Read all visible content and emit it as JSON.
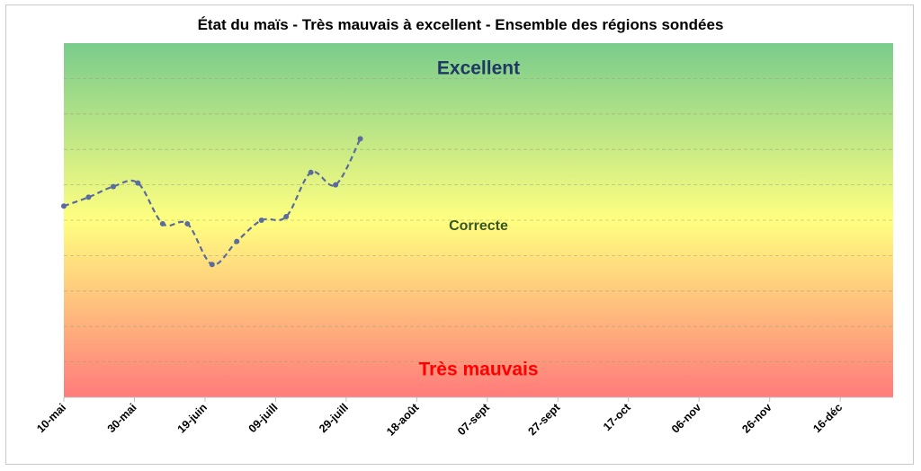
{
  "chart_data": {
    "type": "line",
    "title": "État du maïs - Très mauvais à excellent - Ensemble des régions sondées",
    "xlabel": "",
    "ylabel": "",
    "x_tick_labels": [
      "10-mai",
      "30-mai",
      "19-juin",
      "09-juill",
      "29-juill",
      "18-août",
      "07-sept",
      "27-sept",
      "17-oct",
      "06-nov",
      "26-nov",
      "16-déc"
    ],
    "x_tick_days": [
      0,
      20,
      40,
      60,
      80,
      100,
      120,
      140,
      160,
      180,
      200,
      220
    ],
    "xlim": [
      0,
      235
    ],
    "ylim": [
      0,
      100
    ],
    "grid": true,
    "background_gradient": {
      "top_color": "#79cc8c",
      "middle_color": "#ffff80",
      "bottom_color": "#ff7b7b"
    },
    "zone_labels": [
      {
        "text": "Excellent",
        "y": 93,
        "color": "#1f3864"
      },
      {
        "text": "Correcte",
        "y": 49,
        "color": "#375623"
      },
      {
        "text": "Très mauvais",
        "y": 8,
        "color": "#ff0000"
      }
    ],
    "series": [
      {
        "name": "",
        "color": "#5b6b9e",
        "line_style": "dashed",
        "x": [
          0,
          7,
          14,
          21,
          28,
          35,
          42,
          49,
          56,
          63,
          70,
          77,
          84
        ],
        "y": [
          54,
          56.5,
          59.5,
          60.5,
          49,
          49,
          37.5,
          44,
          50,
          51,
          63.5,
          60,
          73
        ]
      }
    ]
  }
}
